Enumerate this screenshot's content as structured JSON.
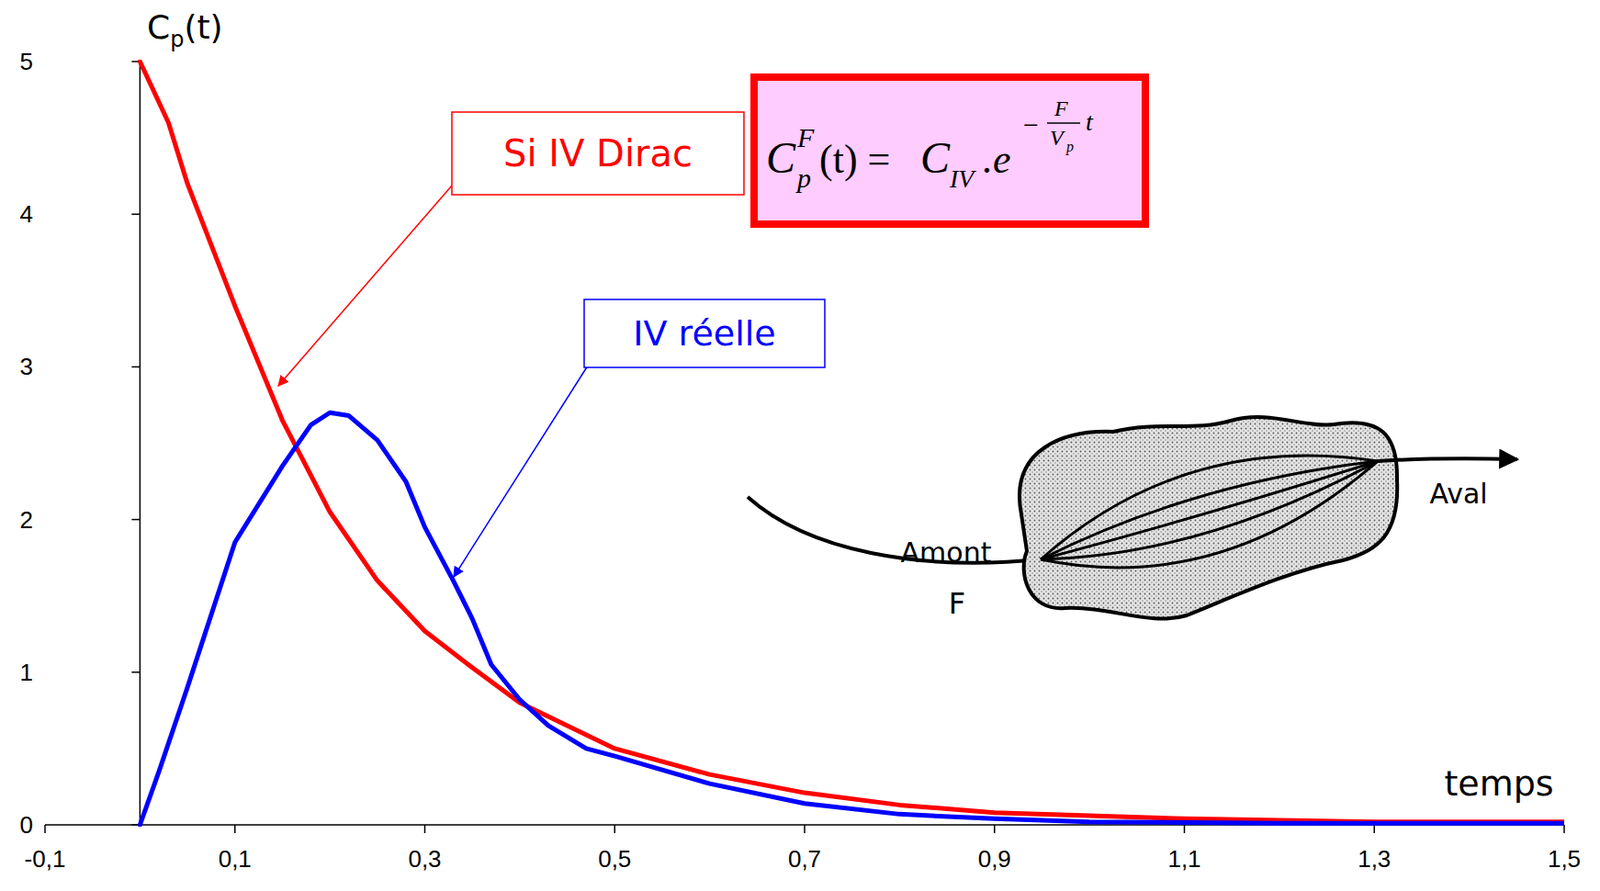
{
  "chart_data": {
    "type": "line",
    "x_label": "temps",
    "y_label": {
      "symbol": "C",
      "sub": "p",
      "arg": "(t)"
    },
    "xlim": [
      -0.1,
      1.5
    ],
    "ylim": [
      0,
      5
    ],
    "xticks": [
      {
        "value": -0.1,
        "label": "-0,1"
      },
      {
        "value": 0.1,
        "label": "0,1"
      },
      {
        "value": 0.3,
        "label": "0,3"
      },
      {
        "value": 0.5,
        "label": "0,5"
      },
      {
        "value": 0.7,
        "label": "0,7"
      },
      {
        "value": 0.9,
        "label": "0,9"
      },
      {
        "value": 1.1,
        "label": "1,1"
      },
      {
        "value": 1.3,
        "label": "1,3"
      },
      {
        "value": 1.5,
        "label": "1,5"
      }
    ],
    "yticks": [
      0,
      1,
      2,
      3,
      4,
      5
    ],
    "grid": false,
    "series": [
      {
        "name": "Si IV Dirac",
        "color": "#ff0000",
        "x": [
          0,
          0.03,
          0.05,
          0.1,
          0.15,
          0.2,
          0.25,
          0.3,
          0.35,
          0.4,
          0.45,
          0.5,
          0.6,
          0.7,
          0.8,
          0.9,
          1.0,
          1.1,
          1.2,
          1.3,
          1.4,
          1.5
        ],
        "values": [
          5,
          4.6,
          4.2,
          3.4,
          2.65,
          2.05,
          1.6,
          1.27,
          1.03,
          0.8,
          0.65,
          0.5,
          0.33,
          0.21,
          0.13,
          0.08,
          0.06,
          0.04,
          0.03,
          0.02,
          0.02,
          0.02
        ]
      },
      {
        "name": "IV réelle",
        "color": "#0000ff",
        "x": [
          0,
          0.02,
          0.05,
          0.1,
          0.15,
          0.18,
          0.2,
          0.22,
          0.25,
          0.28,
          0.3,
          0.33,
          0.35,
          0.37,
          0.4,
          0.43,
          0.47,
          0.5,
          0.6,
          0.7,
          0.8,
          0.9,
          1.0,
          1.2,
          1.5
        ],
        "values": [
          0,
          0.35,
          0.9,
          1.85,
          2.35,
          2.62,
          2.7,
          2.68,
          2.52,
          2.25,
          1.95,
          1.6,
          1.35,
          1.05,
          0.82,
          0.65,
          0.5,
          0.45,
          0.27,
          0.14,
          0.07,
          0.04,
          0.02,
          0.01,
          0.01
        ]
      }
    ],
    "annotations": [
      "Si IV Dirac",
      "IV réelle"
    ],
    "formula": {
      "symbol": "C",
      "sub": "p",
      "sup": "F",
      "arg": "(t) = ",
      "factor": "C",
      "factor_sub": "IV",
      "base": ".e",
      "exp_sign": "−",
      "exp_num": "F",
      "exp_den": "V",
      "exp_den_sub": "p",
      "exp_var": "t"
    },
    "diagram": {
      "labels": [
        "Amont",
        "F",
        "Aval"
      ]
    }
  }
}
